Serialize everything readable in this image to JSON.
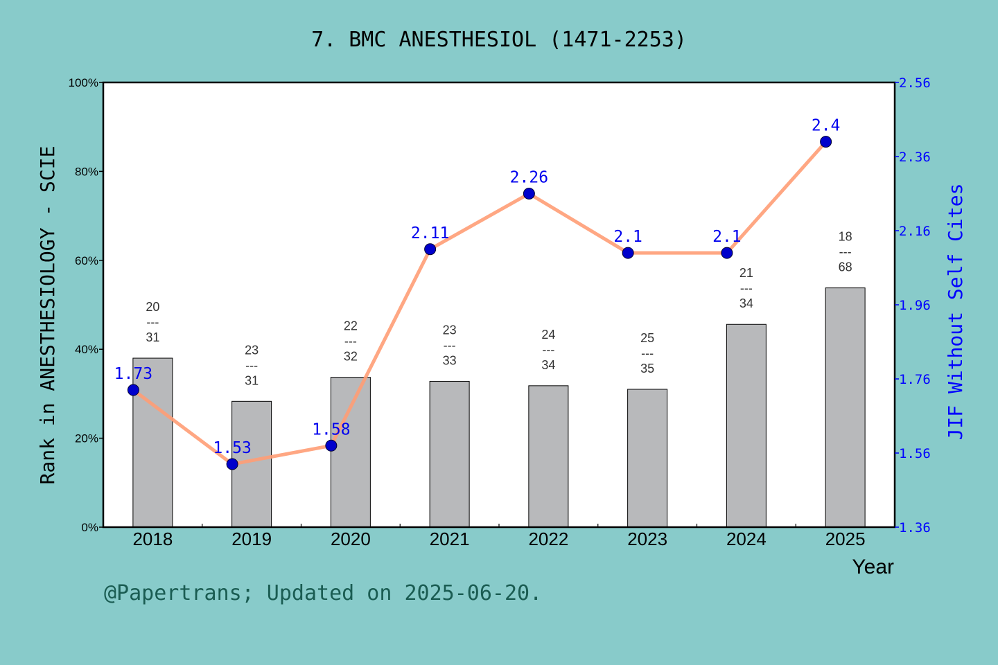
{
  "chart_data": {
    "type": "bar+line",
    "title": "7. BMC ANESTHESIOL (1471-2253)",
    "xlabel": "Year",
    "ylabel_left": "Rank in ANESTHESIOLOGY - SCIE",
    "ylabel_right": "JIF Without Self Cites",
    "categories": [
      "2018",
      "2019",
      "2020",
      "2021",
      "2022",
      "2023",
      "2024",
      "2025"
    ],
    "ylim_left": [
      0,
      100
    ],
    "yticks_left": [
      "0%",
      "20%",
      "40%",
      "60%",
      "80%",
      "100%"
    ],
    "ylim_right": [
      1.36,
      2.56
    ],
    "yticks_right": [
      "1.36",
      "1.56",
      "1.76",
      "1.96",
      "2.16",
      "2.36",
      "2.56"
    ],
    "bar_series": {
      "unit": "percent",
      "values": [
        38,
        28.3,
        33.7,
        32.8,
        31.8,
        31.0,
        45.6,
        53.8
      ],
      "rank": [
        "20",
        "23",
        "22",
        "23",
        "24",
        "25",
        "21",
        "18"
      ],
      "total": [
        "31",
        "31",
        "32",
        "33",
        "34",
        "35",
        "34",
        "68"
      ],
      "separator": "---",
      "color": "#b8b9bb"
    },
    "line_series": {
      "values": [
        1.73,
        1.53,
        1.58,
        2.11,
        2.26,
        2.1,
        2.1,
        2.4
      ],
      "labels": [
        "1.73",
        "1.53",
        "1.58",
        "2.11",
        "2.26",
        "2.1",
        "2.1",
        "2.4"
      ],
      "line_color": "#ff9d76",
      "marker_color": "#0000cc"
    },
    "grid": false,
    "legend": "none"
  },
  "footer": "@Papertrans; Updated on 2025-06-20."
}
